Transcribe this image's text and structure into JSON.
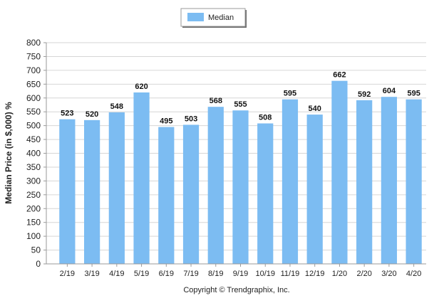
{
  "chart_data": {
    "type": "bar",
    "ylabel": "Median Price (in $,000) %",
    "xlabel": "",
    "categories": [
      "2/19",
      "3/19",
      "4/19",
      "5/19",
      "6/19",
      "7/19",
      "8/19",
      "9/19",
      "10/19",
      "11/19",
      "12/19",
      "1/20",
      "2/20",
      "3/20",
      "4/20"
    ],
    "series": [
      {
        "name": "Median",
        "values": [
          523,
          520,
          548,
          620,
          495,
          503,
          568,
          555,
          508,
          595,
          540,
          662,
          592,
          604,
          595
        ]
      }
    ],
    "ylim": [
      0,
      800
    ],
    "yticks": [
      0,
      50,
      100,
      150,
      200,
      250,
      300,
      350,
      400,
      450,
      500,
      550,
      600,
      650,
      700,
      750,
      800
    ],
    "grid": true,
    "legend_position": "top-center",
    "bar_color": "#7CBCF2",
    "gridline_color": "#D6D6D6",
    "data_labels": true
  },
  "footer": {
    "copyright": "Copyright © Trendgraphix, Inc."
  }
}
